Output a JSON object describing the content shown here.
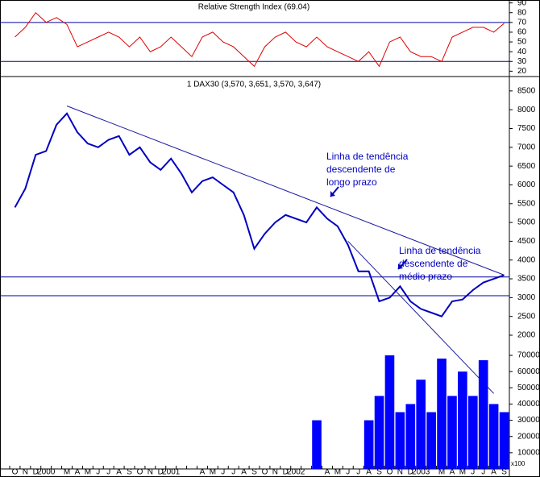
{
  "chart_data": [
    {
      "type": "line",
      "title": "Relative Strength Index (69.04)",
      "color": "#e00000",
      "values": [
        55,
        65,
        80,
        70,
        75,
        68,
        45,
        50,
        55,
        60,
        55,
        45,
        55,
        40,
        45,
        55,
        45,
        35,
        55,
        60,
        50,
        45,
        35,
        25,
        45,
        55,
        60,
        50,
        45,
        55,
        45,
        40,
        35,
        30,
        40,
        25,
        50,
        55,
        40,
        35,
        35,
        30,
        55,
        60,
        65,
        65,
        60,
        69.04
      ],
      "ylim": [
        17,
        93
      ],
      "yticks": [
        20,
        30,
        40,
        50,
        60,
        70,
        80,
        90
      ],
      "hlines": [
        70,
        30
      ],
      "hline_color": "#0000a0"
    },
    {
      "type": "line",
      "title": "1 DAX30 (3,570, 3,651, 3,570, 3,647)",
      "color": "#0000c0",
      "values": [
        5400,
        5900,
        6800,
        6900,
        7600,
        7900,
        7400,
        7100,
        7000,
        7200,
        7300,
        6800,
        7000,
        6600,
        6400,
        6700,
        6300,
        5800,
        6100,
        6200,
        6000,
        5800,
        5200,
        4300,
        4700,
        5000,
        5200,
        5100,
        5000,
        5400,
        5100,
        4900,
        4400,
        3700,
        3700,
        2900,
        3000,
        3300,
        2900,
        2700,
        2600,
        2500,
        2900,
        2950,
        3200,
        3400,
        3500,
        3600
      ],
      "ylim": [
        1700,
        8840
      ],
      "yticks": [
        2000,
        2500,
        3000,
        3500,
        4000,
        4500,
        5000,
        5500,
        6000,
        6500,
        7000,
        7500,
        8000,
        8500
      ],
      "hlines": [
        3550,
        3050
      ],
      "hline_color": "#0000a0",
      "trendlines": [
        {
          "from": {
            "category": 5,
            "value": 8100
          },
          "to": {
            "category": 47,
            "value": 3600
          }
        },
        {
          "from": {
            "category": 32,
            "value": 4500
          },
          "to": {
            "category": 46,
            "value": 450
          }
        }
      ],
      "annotations": [
        [
          "Linha de tendência",
          "descendente de",
          "longo prazo"
        ],
        [
          "Linha de tendência",
          "descendente de",
          "médio prazo"
        ]
      ]
    },
    {
      "type": "bar",
      "color": "#0000ff",
      "unit_label": "x100",
      "categories": [
        "O",
        "N",
        "D",
        "2000",
        null,
        "M",
        "A",
        "M",
        "J",
        "J",
        "A",
        "S",
        "O",
        "N",
        "D",
        "2001",
        null,
        null,
        "A",
        "M",
        "J",
        "J",
        "A",
        "S",
        "O",
        "N",
        "D",
        "2002",
        null,
        null,
        "A",
        "M",
        "J",
        "J",
        "A",
        "S",
        "O",
        "N",
        "D",
        "2003",
        null,
        "M",
        "A",
        "M",
        "J",
        "J",
        "A",
        "S"
      ],
      "values": [
        0,
        0,
        0,
        0,
        0,
        0,
        0,
        0,
        0,
        0,
        0,
        0,
        0,
        0,
        0,
        0,
        0,
        0,
        0,
        0,
        0,
        0,
        0,
        0,
        0,
        0,
        0,
        0,
        0,
        30000,
        0,
        0,
        0,
        0,
        30000,
        45000,
        70000,
        35000,
        40000,
        55000,
        35000,
        68000,
        45000,
        60000,
        45000,
        67000,
        40000,
        35000
      ],
      "ylim": [
        0,
        72000
      ],
      "yticks": [
        10000,
        20000,
        30000,
        40000,
        50000,
        60000,
        70000
      ]
    }
  ]
}
